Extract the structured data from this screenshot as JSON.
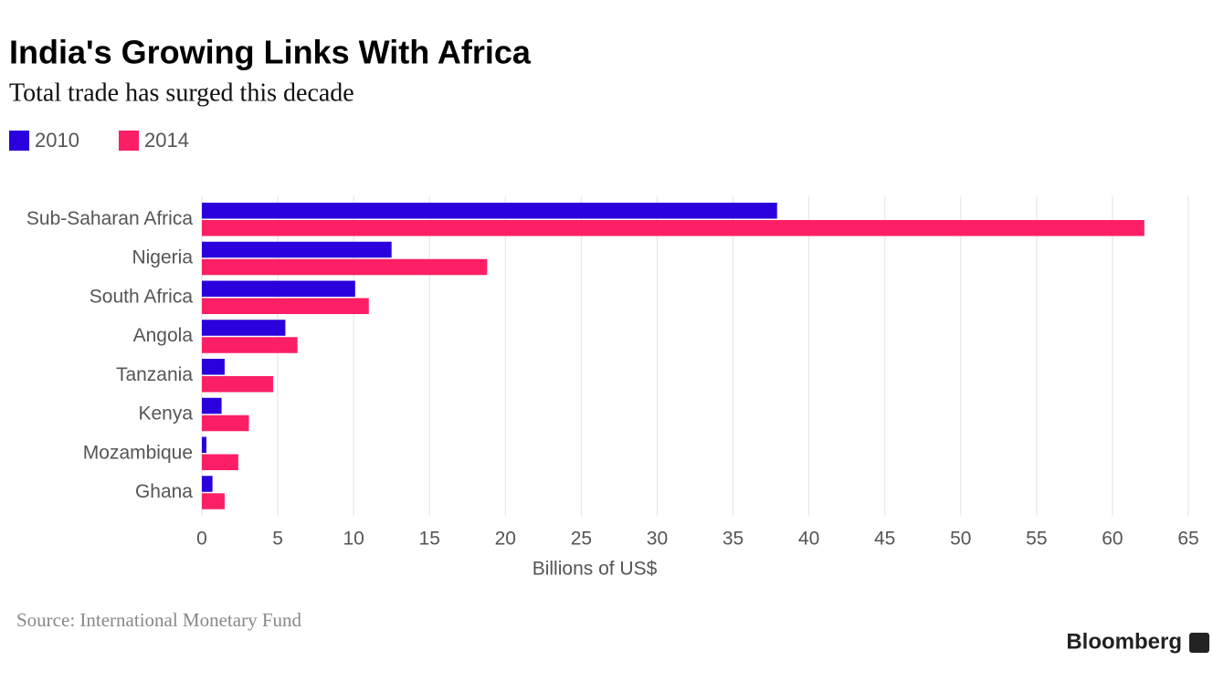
{
  "chart_data": {
    "type": "bar",
    "orientation": "horizontal",
    "title": "India's Growing Links With Africa",
    "subtitle": "Total trade has surged this decade",
    "categories": [
      "Sub-Saharan Africa",
      "Nigeria",
      "South Africa",
      "Angola",
      "Tanzania",
      "Kenya",
      "Mozambique",
      "Ghana"
    ],
    "series": [
      {
        "name": "2010",
        "color": "#2a00dc",
        "values": [
          37.9,
          12.5,
          10.1,
          5.5,
          1.5,
          1.3,
          0.3,
          0.7
        ]
      },
      {
        "name": "2014",
        "color": "#fc1f66",
        "values": [
          62.1,
          18.8,
          11.0,
          6.3,
          4.7,
          3.1,
          2.4,
          1.5
        ]
      }
    ],
    "xlim": [
      0,
      65
    ],
    "xticks": [
      0,
      5,
      10,
      15,
      20,
      25,
      30,
      35,
      40,
      45,
      50,
      55,
      60,
      65
    ],
    "xlabel": "Billions of US$",
    "grid": true,
    "legend": "top-left",
    "source": "Source: International Monetary Fund",
    "brand": "Bloomberg"
  }
}
